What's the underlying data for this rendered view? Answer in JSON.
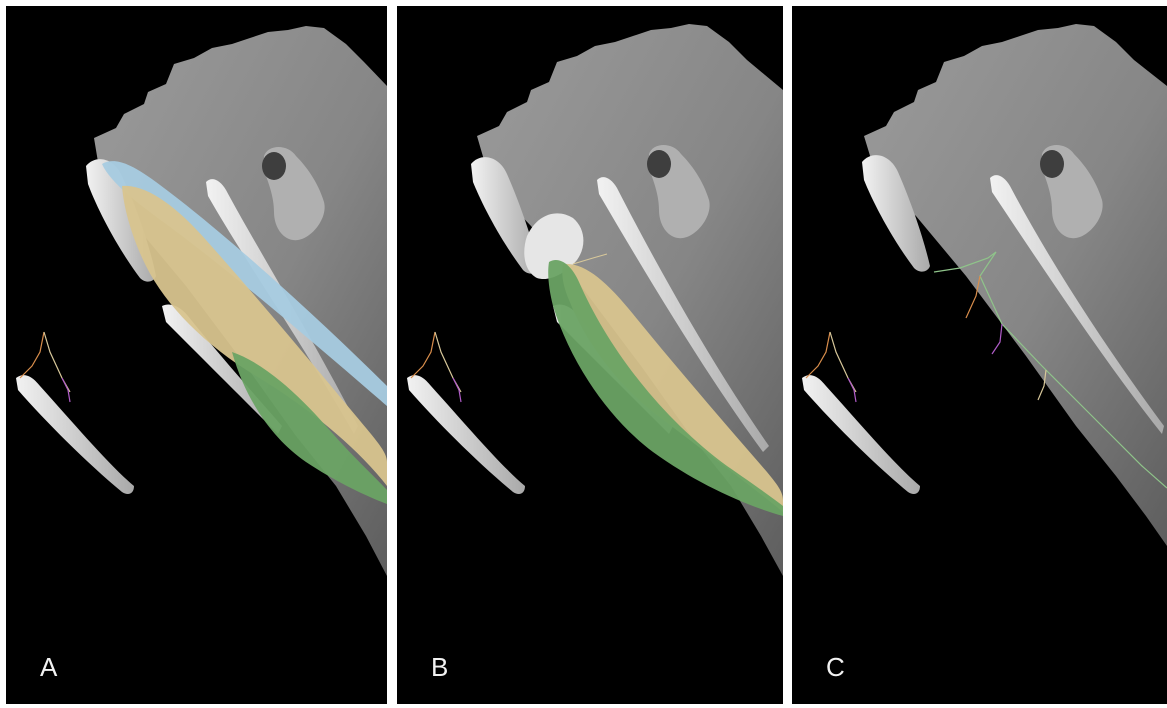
{
  "figure": {
    "panels": [
      {
        "id": "A",
        "label": "A",
        "structures": [
          "blue-muscle",
          "tan-muscle",
          "green-muscle",
          "nerve-branches"
        ]
      },
      {
        "id": "B",
        "label": "B",
        "structures": [
          "tan-muscle",
          "green-muscle",
          "nerve-branches"
        ]
      },
      {
        "id": "C",
        "label": "C",
        "structures": [
          "nerve-branches"
        ]
      }
    ],
    "colors": {
      "background": "#000000",
      "gutter": "#ffffff",
      "body_surface": "#8a8a8a",
      "bone": "#d9d9d9",
      "blue_muscle": "#a6cbe0",
      "tan_muscle": "#d8c48e",
      "green_muscle": "#6aa364",
      "nerve_orange": "#d98e4c",
      "nerve_purple": "#b05cc8",
      "nerve_green": "#8fc48a",
      "nerve_tan": "#d8c89a"
    }
  }
}
